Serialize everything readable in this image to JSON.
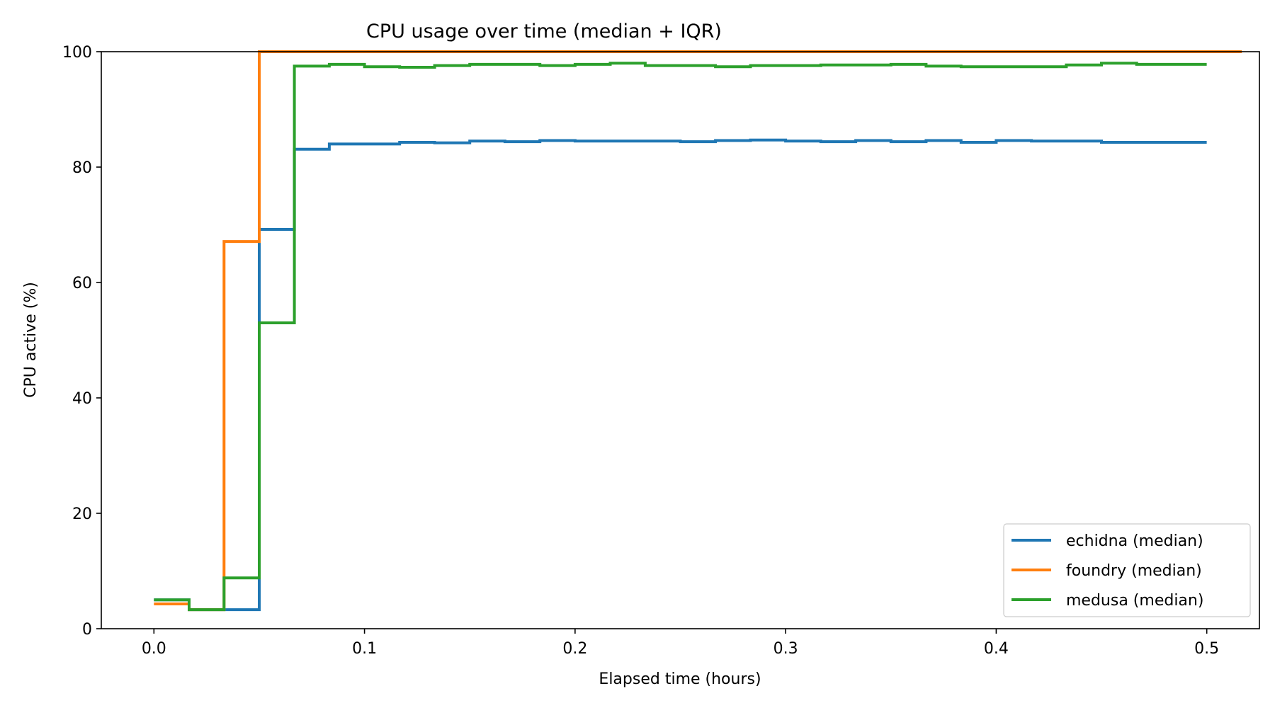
{
  "chart_data": {
    "type": "line",
    "step": "post",
    "title": "CPU usage over time (median + IQR)",
    "xlabel": "Elapsed time (hours)",
    "ylabel": "CPU active (%)",
    "xlim": [
      -0.025,
      0.525
    ],
    "ylim": [
      0,
      100
    ],
    "xticks": [
      0.0,
      0.1,
      0.2,
      0.3,
      0.4,
      0.5
    ],
    "xtick_labels": [
      "0.0",
      "0.1",
      "0.2",
      "0.3",
      "0.4",
      "0.5"
    ],
    "yticks": [
      0,
      20,
      40,
      60,
      80,
      100
    ],
    "ytick_labels": [
      "0",
      "20",
      "40",
      "60",
      "80",
      "100"
    ],
    "grid": false,
    "legend_position": "lower-right",
    "series": [
      {
        "name": "echidna (median)",
        "color": "#1f77b4",
        "x": [
          0.0,
          0.0167,
          0.0333,
          0.05,
          0.0667,
          0.0833,
          0.1,
          0.1167,
          0.1333,
          0.15,
          0.1667,
          0.1833,
          0.2,
          0.2167,
          0.2333,
          0.25,
          0.2667,
          0.2833,
          0.3,
          0.3167,
          0.3333,
          0.35,
          0.3667,
          0.3833,
          0.4,
          0.4167,
          0.4333,
          0.45,
          0.4667,
          0.4833
        ],
        "y": [
          5.0,
          3.3,
          3.3,
          69.2,
          83.1,
          84.0,
          84.0,
          84.3,
          84.2,
          84.5,
          84.4,
          84.6,
          84.5,
          84.5,
          84.5,
          84.4,
          84.6,
          84.7,
          84.5,
          84.4,
          84.6,
          84.4,
          84.6,
          84.3,
          84.6,
          84.5,
          84.5,
          84.3,
          84.3,
          84.3
        ]
      },
      {
        "name": "foundry (median)",
        "color": "#ff7f0e",
        "x": [
          0.0,
          0.0167,
          0.0333,
          0.05,
          0.0667,
          0.0833,
          0.1,
          0.1167,
          0.1333,
          0.15,
          0.1667,
          0.1833,
          0.2,
          0.2167,
          0.2333,
          0.25,
          0.2667,
          0.2833,
          0.3,
          0.3167,
          0.3333,
          0.35,
          0.3667,
          0.3833,
          0.4,
          0.4167,
          0.4333,
          0.45,
          0.4667,
          0.4833,
          0.5
        ],
        "y": [
          4.3,
          3.3,
          67.1,
          100.0,
          100.0,
          100.0,
          100.0,
          100.0,
          100.0,
          100.0,
          100.0,
          100.0,
          100.0,
          100.0,
          100.0,
          100.0,
          100.0,
          100.0,
          100.0,
          100.0,
          100.0,
          100.0,
          100.0,
          100.0,
          100.0,
          100.0,
          100.0,
          100.0,
          100.0,
          100.0,
          100.0
        ]
      },
      {
        "name": "medusa (median)",
        "color": "#2ca02c",
        "x": [
          0.0,
          0.0167,
          0.0333,
          0.05,
          0.0667,
          0.0833,
          0.1,
          0.1167,
          0.1333,
          0.15,
          0.1667,
          0.1833,
          0.2,
          0.2167,
          0.2333,
          0.25,
          0.2667,
          0.2833,
          0.3,
          0.3167,
          0.3333,
          0.35,
          0.3667,
          0.3833,
          0.4,
          0.4167,
          0.4333,
          0.45,
          0.4667,
          0.4833
        ],
        "y": [
          5.0,
          3.3,
          8.8,
          53.0,
          97.5,
          97.8,
          97.4,
          97.3,
          97.6,
          97.8,
          97.8,
          97.6,
          97.8,
          98.0,
          97.6,
          97.6,
          97.4,
          97.6,
          97.6,
          97.7,
          97.7,
          97.8,
          97.5,
          97.4,
          97.4,
          97.4,
          97.7,
          98.0,
          97.8,
          97.8
        ]
      }
    ]
  }
}
